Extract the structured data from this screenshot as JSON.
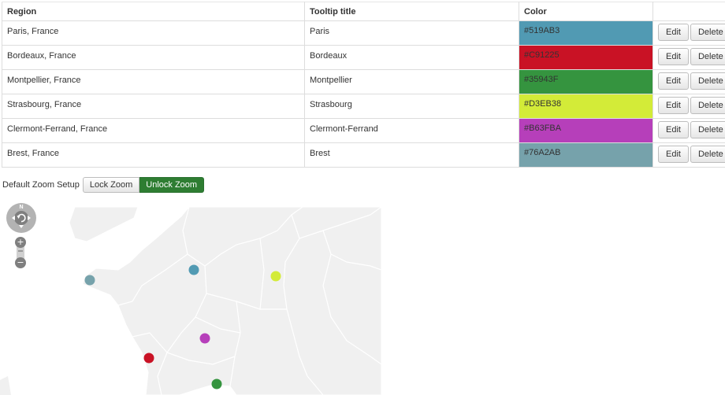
{
  "table": {
    "headers": {
      "region": "Region",
      "tooltip": "Tooltip title",
      "color": "Color",
      "actions": ""
    },
    "rows": [
      {
        "region": "Paris, France",
        "tooltip": "Paris",
        "color": "#519AB3"
      },
      {
        "region": "Bordeaux, France",
        "tooltip": "Bordeaux",
        "color": "#C91225"
      },
      {
        "region": "Montpellier, France",
        "tooltip": "Montpellier",
        "color": "#35943F"
      },
      {
        "region": "Strasbourg, France",
        "tooltip": "Strasbourg",
        "color": "#D3EB38"
      },
      {
        "region": "Clermont-Ferrand, France",
        "tooltip": "Clermont-Ferrand",
        "color": "#B63FBA"
      },
      {
        "region": "Brest, France",
        "tooltip": "Brest",
        "color": "#76A2AB"
      }
    ],
    "edit_label": "Edit",
    "delete_label": "Delete"
  },
  "zoom_setup": {
    "label": "Default Zoom Setup",
    "lock_label": "Lock Zoom",
    "unlock_label": "Unlock Zoom",
    "active": "unlock"
  },
  "map": {
    "compass_label": "N",
    "zoom_in_symbol": "+",
    "zoom_out_symbol": "−",
    "colors": {
      "land": "#f0f0f0",
      "sea": "#ffffff",
      "border": "#ffffff",
      "active_button": "#2e7d32"
    },
    "markers": [
      {
        "name": "Paris",
        "color": "#519AB3"
      },
      {
        "name": "Bordeaux",
        "color": "#C91225"
      },
      {
        "name": "Montpellier",
        "color": "#35943F"
      },
      {
        "name": "Strasbourg",
        "color": "#D3EB38"
      },
      {
        "name": "Clermont-Ferrand",
        "color": "#B63FBA"
      },
      {
        "name": "Brest",
        "color": "#76A2AB"
      }
    ]
  }
}
